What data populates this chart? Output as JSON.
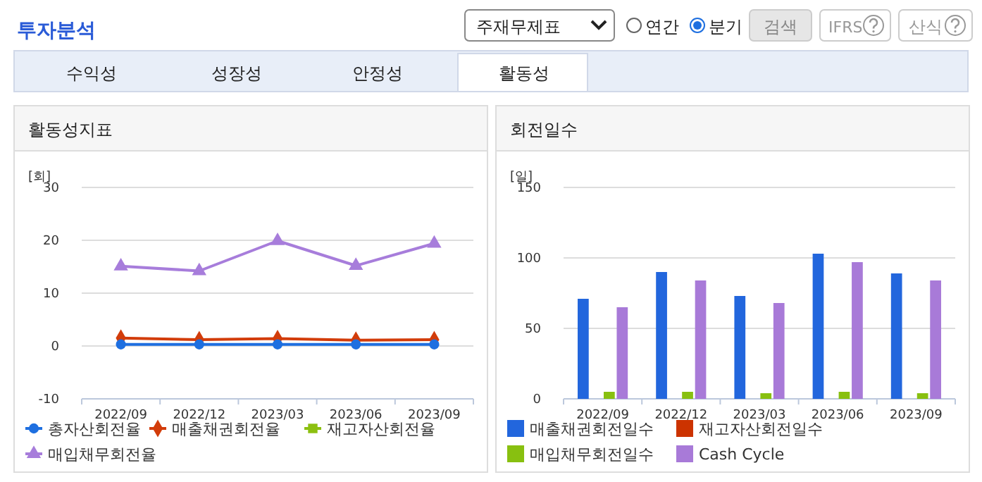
{
  "chart_data": [
    {
      "type": "other",
      "title": "투자분석",
      "annotations": [
        "주재무제표",
        "연간",
        "분기",
        "검색",
        "IFRS",
        "산식",
        "수익성",
        "성장성",
        "안정성",
        "활동성"
      ]
    },
    {
      "type": "line",
      "title": "활동성지표",
      "ylabel": "[회]",
      "categories": [
        "2022/09",
        "2022/12",
        "2023/03",
        "2023/06",
        "2023/09"
      ],
      "ylim": [
        -10,
        30
      ],
      "yticks": [
        -10,
        0,
        10,
        20,
        30
      ],
      "grid": "y",
      "legend": "bottom",
      "line_style": "solid",
      "series": [
        {
          "name": "총자산회전율",
          "color": "#1e6fe0",
          "marker": "circle",
          "values": [
            0.3,
            0.3,
            0.3,
            0.3,
            0.3
          ]
        },
        {
          "name": "매출채권회전율",
          "color": "#d23c0a",
          "marker": "diamond",
          "values": [
            1.5,
            1.2,
            1.4,
            1.1,
            1.2
          ]
        },
        {
          "name": "재고자산회전율",
          "color": "#8cc010",
          "marker": "square",
          "values": [
            null,
            null,
            null,
            null,
            null
          ]
        },
        {
          "name": "매입채무회전율",
          "color": "#a77ddb",
          "marker": "triangle",
          "values": [
            15.1,
            14.2,
            19.9,
            15.2,
            19.4
          ]
        }
      ]
    },
    {
      "type": "bar",
      "title": "회전일수",
      "ylabel": "[일]",
      "categories": [
        "2022/09",
        "2022/12",
        "2023/03",
        "2023/06",
        "2023/09"
      ],
      "ylim": [
        0,
        150
      ],
      "yticks": [
        0,
        50,
        100,
        150
      ],
      "grid": "y",
      "legend": "bottom",
      "series": [
        {
          "name": "매출채권회전일수",
          "color": "#2266dd",
          "values": [
            71,
            90,
            73,
            103,
            89
          ]
        },
        {
          "name": "재고자산회전일수",
          "color": "#cc3300",
          "values": [
            null,
            null,
            null,
            null,
            null
          ]
        },
        {
          "name": "매입채무회전일수",
          "color": "#88c010",
          "values": [
            5,
            5,
            4,
            5,
            4
          ]
        },
        {
          "name": "Cash Cycle",
          "color": "#a87ad8",
          "values": [
            65,
            84,
            68,
            97,
            84
          ]
        }
      ]
    }
  ]
}
